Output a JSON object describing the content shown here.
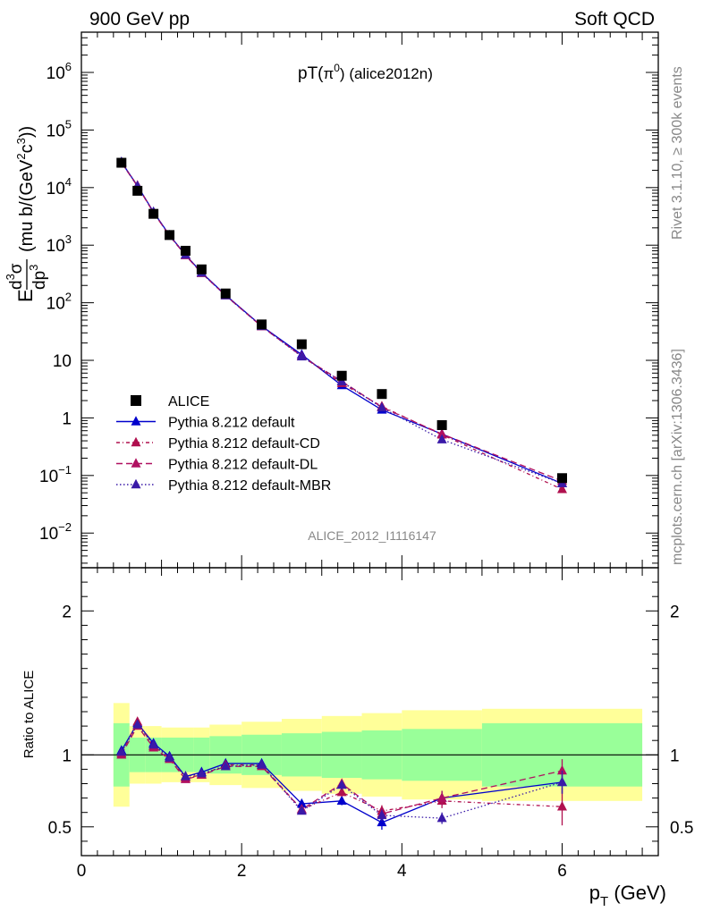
{
  "header": {
    "left": "900 GeV pp",
    "right": "Soft QCD",
    "title_main": "pT(",
    "title_pi": "π",
    "title_sup": "0",
    "title_close": ")",
    "title_tag": " (alice2012n)",
    "watermark": "ALICE_2012_I1116147",
    "side_top": "Rivet 3.1.10, ≥ 300k events",
    "side_bottom": "mcplots.cern.ch [arXiv:1306.3436]"
  },
  "ylabel_upper": {
    "E": "E",
    "d3": "d",
    "sup3": "3",
    "sigma": "σ",
    "dp": "dp",
    "sup3b": "3",
    "units": "(mu b/(GeV",
    "sup2": "2",
    "c": "c",
    "sup3c": "3",
    "close": "))"
  },
  "ylabel_lower": "Ratio to ALICE",
  "xlabel": {
    "p": "p",
    "sub": "T",
    "units": " (GeV)"
  },
  "legend": [
    {
      "label": "ALICE",
      "color": "#000000",
      "dash": "",
      "marker": "square"
    },
    {
      "label": "Pythia 8.212 default",
      "color": "#0000cc",
      "dash": "",
      "marker": "triangle"
    },
    {
      "label": "Pythia 8.212 default-CD",
      "color": "#b0104e",
      "dash": "4,3,1,3",
      "marker": "triangle"
    },
    {
      "label": "Pythia 8.212 default-DL",
      "color": "#b01060",
      "dash": "7,4",
      "marker": "triangle"
    },
    {
      "label": "Pythia 8.212 default-MBR",
      "color": "#3a1aa8",
      "dash": "1.5,2.5",
      "marker": "triangle"
    }
  ],
  "chart_data": {
    "type": "scatter",
    "upper": {
      "yscale": "log",
      "ylim": [
        0.0025,
        5000000
      ],
      "yticks": [
        {
          "v": 1000000,
          "base": "10",
          "exp": "6"
        },
        {
          "v": 100000,
          "base": "10",
          "exp": "5"
        },
        {
          "v": 10000,
          "base": "10",
          "exp": "4"
        },
        {
          "v": 1000,
          "base": "10",
          "exp": "3"
        },
        {
          "v": 100,
          "base": "10",
          "exp": "2"
        },
        {
          "v": 10,
          "base": "10",
          "exp": ""
        },
        {
          "v": 1,
          "base": "1",
          "exp": ""
        },
        {
          "v": 0.1,
          "base": "10",
          "exp": "−1"
        },
        {
          "v": 0.01,
          "base": "10",
          "exp": "−2"
        }
      ]
    },
    "lower": {
      "yscale": "linear",
      "ylim": [
        0.3,
        2.3
      ],
      "yticks": [
        0.5,
        1,
        2
      ],
      "refline": 1
    },
    "xlim": [
      0,
      7.2
    ],
    "xticks": [
      0,
      2,
      4,
      6
    ],
    "data": {
      "name": "ALICE",
      "x": [
        0.5,
        0.7,
        0.9,
        1.1,
        1.3,
        1.5,
        1.8,
        2.25,
        2.75,
        3.25,
        3.75,
        4.5,
        6.0
      ],
      "y": [
        27000,
        8800,
        3500,
        1500,
        800,
        380,
        145,
        42,
        19,
        5.4,
        2.6,
        0.75,
        0.09
      ],
      "bins": [
        [
          0.4,
          0.6
        ],
        [
          0.6,
          0.8
        ],
        [
          0.8,
          1.0
        ],
        [
          1.0,
          1.2
        ],
        [
          1.2,
          1.4
        ],
        [
          1.4,
          1.6
        ],
        [
          1.6,
          2.0
        ],
        [
          2.0,
          2.5
        ],
        [
          2.5,
          3.0
        ],
        [
          3.0,
          3.5
        ],
        [
          3.5,
          4.0
        ],
        [
          4.0,
          5.0
        ],
        [
          5.0,
          7.0
        ]
      ],
      "band_stat": [
        0.22,
        0.12,
        0.12,
        0.12,
        0.12,
        0.12,
        0.13,
        0.14,
        0.15,
        0.16,
        0.17,
        0.18,
        0.22
      ],
      "band_total": [
        0.36,
        0.2,
        0.2,
        0.19,
        0.19,
        0.19,
        0.21,
        0.23,
        0.25,
        0.27,
        0.29,
        0.31,
        0.32
      ],
      "color": "#000000"
    },
    "series": [
      {
        "name": "Pythia 8.212 default",
        "color": "#0000cc",
        "dash": "",
        "ratio": [
          1.03,
          1.22,
          1.08,
          0.99,
          0.85,
          0.88,
          0.94,
          0.94,
          0.66,
          0.68,
          0.53,
          0.7,
          0.81
        ],
        "err": [
          0.02,
          0.02,
          0.02,
          0.02,
          0.02,
          0.02,
          0.02,
          0.02,
          0.02,
          0.03,
          0.05,
          0.05,
          0.08
        ]
      },
      {
        "name": "Pythia 8.212 default-CD",
        "color": "#b0104e",
        "dash": "4,3,1,3",
        "ratio": [
          1.01,
          1.23,
          1.06,
          0.98,
          0.84,
          0.86,
          0.93,
          0.93,
          0.62,
          0.74,
          0.61,
          0.68,
          0.64
        ],
        "err": [
          0.02,
          0.02,
          0.02,
          0.02,
          0.02,
          0.02,
          0.02,
          0.02,
          0.02,
          0.03,
          0.04,
          0.05,
          0.13
        ]
      },
      {
        "name": "Pythia 8.212 default-DL",
        "color": "#b01060",
        "dash": "7,4",
        "ratio": [
          1.0,
          1.2,
          1.05,
          0.97,
          0.83,
          0.86,
          0.92,
          0.92,
          0.62,
          0.8,
          0.59,
          0.7,
          0.89
        ],
        "err": [
          0.02,
          0.02,
          0.02,
          0.02,
          0.02,
          0.02,
          0.02,
          0.02,
          0.02,
          0.03,
          0.04,
          0.05,
          0.08
        ]
      },
      {
        "name": "Pythia 8.212 default-MBR",
        "color": "#3a1aa8",
        "dash": "1.5,2.5",
        "ratio": [
          1.02,
          1.21,
          1.07,
          0.98,
          0.85,
          0.87,
          0.92,
          0.93,
          0.61,
          0.79,
          0.58,
          0.56,
          0.81
        ],
        "err": [
          0.02,
          0.02,
          0.02,
          0.02,
          0.02,
          0.02,
          0.02,
          0.02,
          0.02,
          0.03,
          0.04,
          0.04,
          0.08
        ]
      }
    ]
  },
  "colors": {
    "band_total": "#ffff99",
    "band_stat": "#99ff99"
  }
}
